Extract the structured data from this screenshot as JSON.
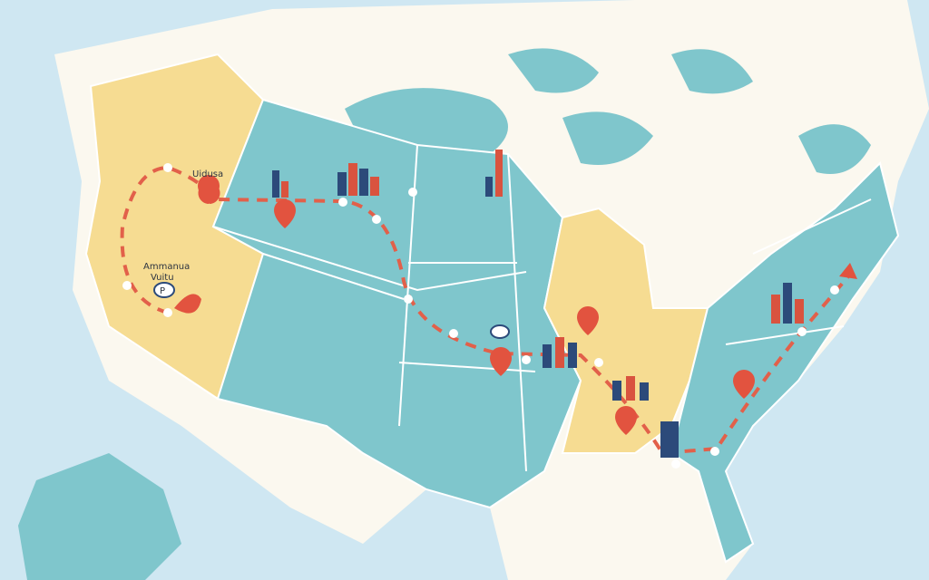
{
  "map": {
    "labels": {
      "west_city": "Uidusa",
      "southwest_line1": "Ammanua",
      "southwest_line2": "Vuitu",
      "badge": "P"
    },
    "colors": {
      "ocean": "#cfe7f2",
      "land": "#fbf8ef",
      "region_teal": "#7fc6cc",
      "region_yellow": "#f6dc92",
      "route": "#e2604a",
      "pin": "#e2533f",
      "skyline_blue": "#2c4a7a",
      "skyline_red": "#d9533f"
    },
    "route_stops": 14,
    "pins": 8,
    "skylines": 7
  }
}
